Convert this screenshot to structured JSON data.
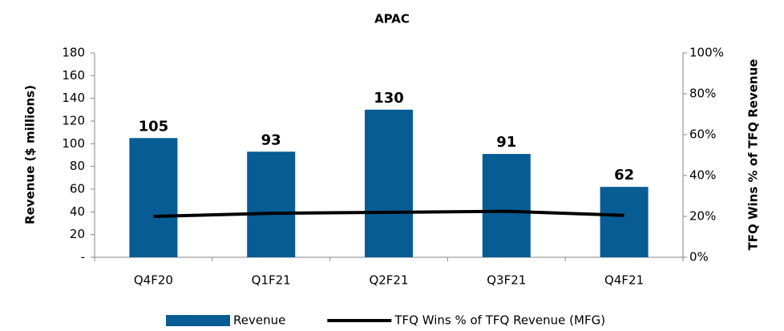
{
  "chart_data": {
    "type": "bar_line",
    "title": "APAC",
    "y_label": "Revenue ($ millions)",
    "y2_label": "TFQ Wins % of TFQ Revenue",
    "categories": [
      "Q4F20",
      "Q1F21",
      "Q2F21",
      "Q3F21",
      "Q4F21"
    ],
    "series": [
      {
        "name": "Revenue",
        "type": "bar",
        "color": "#075c94",
        "values": [
          105,
          93,
          130,
          91,
          62
        ]
      },
      {
        "name": "TFQ Wins % of TFQ Revenue (MFG)",
        "type": "line",
        "color": "#000000",
        "axis": "y2",
        "values": [
          20,
          21.5,
          22,
          22.5,
          20.5
        ]
      }
    ],
    "ylim": [
      0,
      180
    ],
    "yticks": [
      {
        "value": 0,
        "label": "-"
      },
      20,
      40,
      60,
      80,
      100,
      120,
      140,
      160,
      180
    ],
    "y2lim": [
      0,
      100
    ],
    "y2ticks": [
      {
        "value": 0,
        "label": "0%"
      },
      {
        "value": 20,
        "label": "20%"
      },
      {
        "value": 40,
        "label": "40%"
      },
      {
        "value": 60,
        "label": "60%"
      },
      {
        "value": 80,
        "label": "80%"
      },
      {
        "value": 100,
        "label": "100%"
      }
    ],
    "grid": false,
    "legend": "bottom"
  }
}
